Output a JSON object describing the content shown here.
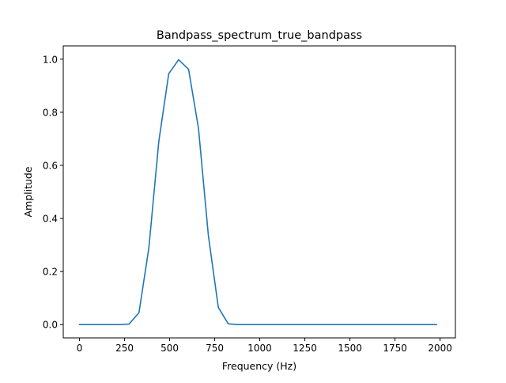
{
  "chart_data": {
    "type": "line",
    "title": "Bandpass_spectrum_true_bandpass",
    "xlabel": "Frequency (Hz)",
    "ylabel": "Amplitude",
    "xlim": [
      -90,
      2085
    ],
    "ylim": [
      -0.05,
      1.05
    ],
    "xticks": [
      0,
      250,
      500,
      750,
      1000,
      1250,
      1500,
      1750,
      2000
    ],
    "xtick_labels": [
      "0",
      "250",
      "500",
      "750",
      "1000",
      "1250",
      "1500",
      "1750",
      "2000"
    ],
    "yticks": [
      0.0,
      0.2,
      0.4,
      0.6,
      0.8,
      1.0
    ],
    "ytick_labels": [
      "0.0",
      "0.2",
      "0.4",
      "0.6",
      "0.8",
      "1.0"
    ],
    "grid": false,
    "series": [
      {
        "color": "#1f77b4",
        "x": [
          0,
          55,
          110,
          165,
          220,
          275,
          330,
          385,
          440,
          495,
          550,
          605,
          660,
          715,
          770,
          825,
          880,
          935,
          990,
          1045,
          1100,
          1155,
          1210,
          1265,
          1320,
          1375,
          1430,
          1485,
          1540,
          1595,
          1650,
          1705,
          1760,
          1815,
          1870,
          1925,
          1980
        ],
        "y": [
          0.0,
          0.0,
          0.0,
          0.0,
          0.0,
          0.002,
          0.045,
          0.29,
          0.69,
          0.945,
          0.998,
          0.962,
          0.74,
          0.335,
          0.065,
          0.003,
          0.0,
          0.0,
          0.0,
          0.0,
          0.0,
          0.0,
          0.0,
          0.0,
          0.0,
          0.0,
          0.0,
          0.0,
          0.0,
          0.0,
          0.0,
          0.0,
          0.0,
          0.0,
          0.0,
          0.0,
          0.0
        ]
      }
    ]
  }
}
